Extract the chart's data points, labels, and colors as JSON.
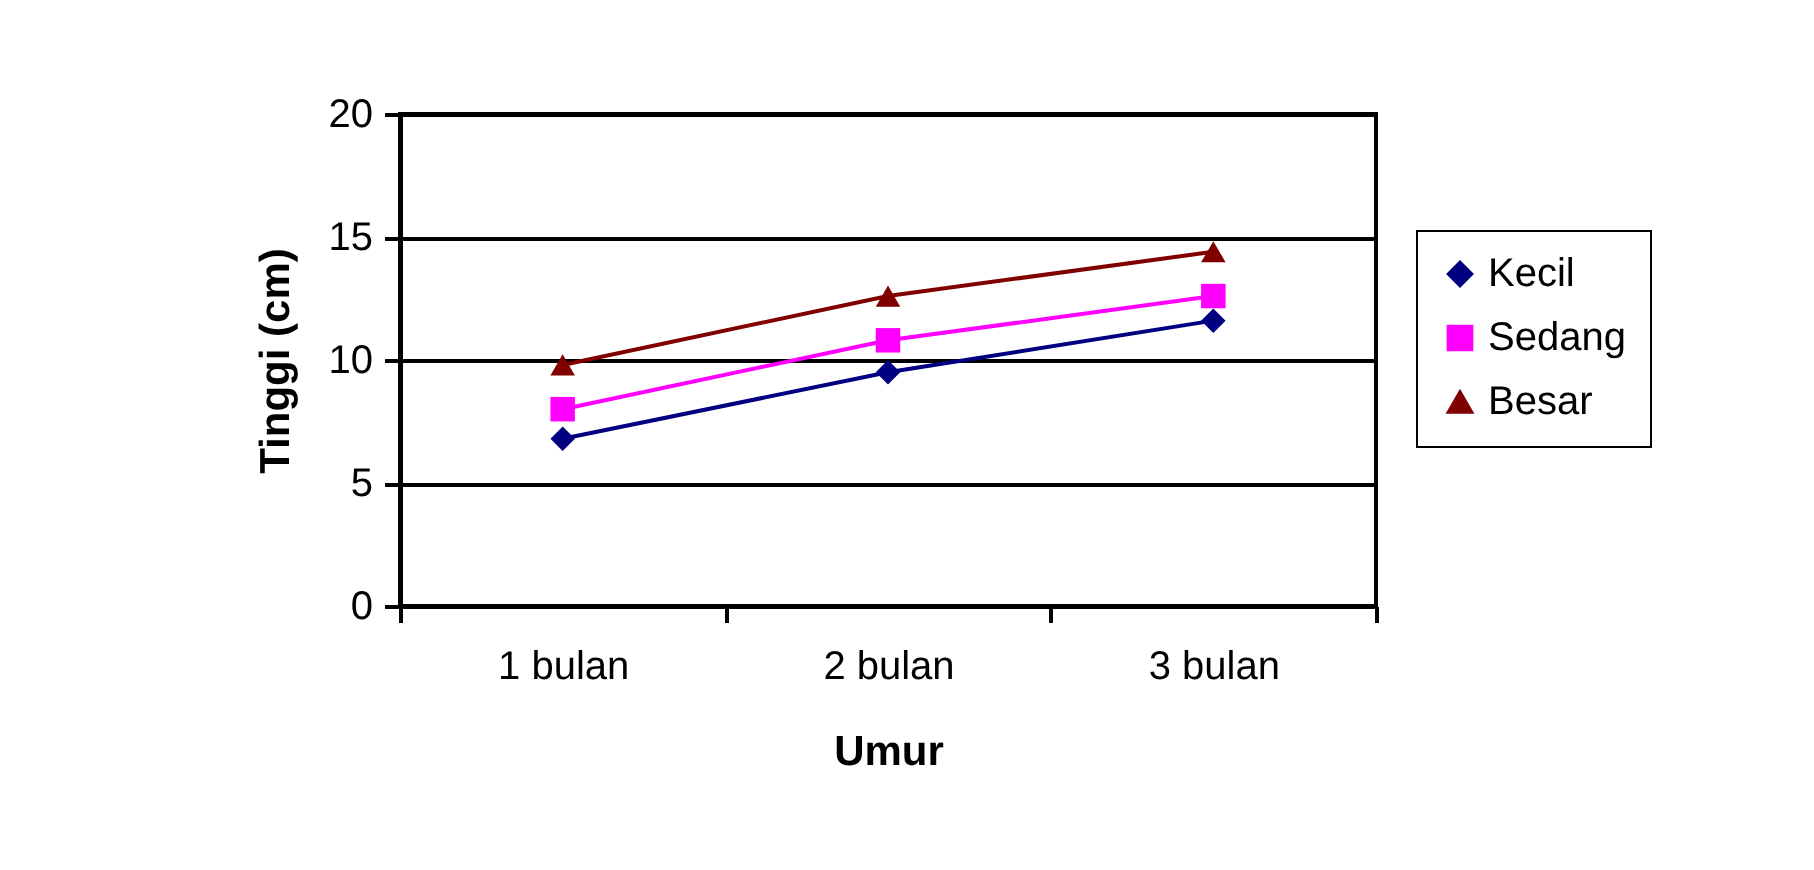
{
  "chart_data": {
    "type": "line",
    "xlabel": "Umur",
    "ylabel": "Tinggi (cm)",
    "categories": [
      "1 bulan",
      "2 bulan",
      "3 bulan"
    ],
    "series": [
      {
        "name": "Kecil",
        "color": "#000080",
        "marker": "diamond",
        "values": [
          6.8,
          9.5,
          11.6
        ]
      },
      {
        "name": "Sedang",
        "color": "#ff00ff",
        "marker": "square",
        "values": [
          8.0,
          10.8,
          12.6
        ]
      },
      {
        "name": "Besar",
        "color": "#800000",
        "marker": "triangle",
        "values": [
          9.8,
          12.6,
          14.4
        ]
      }
    ],
    "ylim": [
      0,
      20
    ],
    "yticks": [
      0,
      5,
      10,
      15,
      20
    ],
    "grid": "y",
    "legend": "right"
  }
}
